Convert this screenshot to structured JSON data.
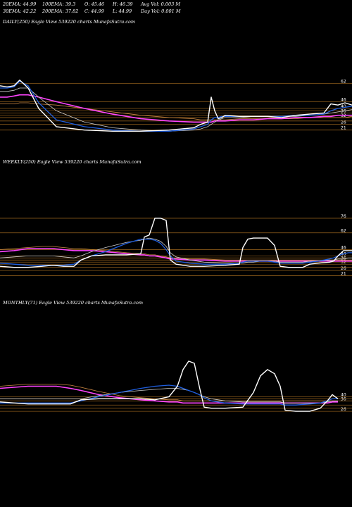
{
  "header": {
    "ema20": "20EMA: 44.99",
    "ema100": "100EMA: 39.3",
    "open": "O: 45.46",
    "high": "H: 46.39",
    "avg_vol": "Avg Vol: 0.003 M",
    "ema30": "30EMA: 42.22",
    "ema200": "200EMA: 37.82",
    "close": "C: 44.99",
    "low": "L: 44.99",
    "day_vol": "Day Vol: 0.001 M"
  },
  "colors": {
    "price": "#ffffff",
    "ema_short": "#1f5fe0",
    "ema_mid": "#cccccc",
    "ema_long": "#ff44ff",
    "ema_200": "#cc8844",
    "hline": "#8a5a1a"
  },
  "chart_data": [
    {
      "type": "line",
      "title": "DAILY(250) Eagle  View  539220  charts MunafaSutra.com",
      "ylim": [
        14,
        71
      ],
      "hlines": [
        {
          "value": 62,
          "label": "62"
        },
        {
          "value": 46,
          "label": "46"
        },
        {
          "value": 40,
          "label": "40"
        },
        {
          "value": 36,
          "label": "36"
        },
        {
          "value": 32,
          "label": "32"
        },
        {
          "value": 26,
          "label": "26"
        },
        {
          "value": 21,
          "label": "21"
        },
        {
          "value": 38,
          "label": ""
        },
        {
          "value": 34,
          "label": ""
        },
        {
          "value": 29,
          "label": ""
        }
      ],
      "x": [
        0,
        10,
        20,
        28,
        40,
        55,
        80,
        120,
        160,
        200,
        240,
        275,
        285,
        295,
        300,
        305,
        310,
        315,
        320,
        340,
        360,
        380,
        400,
        420,
        440,
        460,
        470,
        480,
        490,
        500
      ],
      "series": [
        {
          "role": "price",
          "values": [
            60,
            59,
            60,
            65,
            58,
            40,
            24,
            21,
            20,
            20,
            21,
            23,
            26,
            28,
            50,
            38,
            31,
            32,
            34,
            33,
            33,
            33,
            32,
            34,
            35,
            36,
            44,
            43,
            45,
            43
          ]
        },
        {
          "role": "ema_short",
          "values": [
            58,
            58,
            59,
            64,
            60,
            45,
            30,
            24,
            21,
            20,
            20,
            22,
            24,
            26,
            30,
            32,
            32,
            33,
            33,
            33,
            33,
            33,
            33,
            34,
            34,
            35,
            38,
            40,
            41,
            42
          ]
        },
        {
          "role": "ema_mid",
          "values": [
            55,
            55,
            56,
            58,
            58,
            50,
            38,
            28,
            23,
            21,
            20,
            21,
            22,
            24,
            26,
            28,
            30,
            31,
            32,
            32,
            33,
            33,
            33,
            33,
            34,
            35,
            36,
            37,
            38,
            39
          ]
        },
        {
          "role": "ema_long",
          "values": [
            50,
            50,
            51,
            52,
            52,
            50,
            46,
            40,
            35,
            31,
            29,
            28,
            28,
            28,
            28,
            29,
            29,
            29,
            29,
            30,
            30,
            31,
            31,
            32,
            32,
            33,
            33,
            34,
            34,
            34
          ]
        },
        {
          "role": "ema_200",
          "values": [
            44,
            44,
            44,
            45,
            45,
            44,
            43,
            40,
            37,
            34,
            32,
            31,
            30,
            30,
            30,
            30,
            30,
            30,
            30,
            31,
            31,
            31,
            31,
            31,
            32,
            32,
            32,
            32,
            32,
            33
          ]
        }
      ]
    },
    {
      "type": "line",
      "title": "WEEKLY(250) Eagle  View  539220  charts MunafaSutra.com",
      "ylim": [
        18,
        80
      ],
      "hlines": [
        {
          "value": 76,
          "label": "76"
        },
        {
          "value": 62,
          "label": "62"
        },
        {
          "value": 46,
          "label": "46"
        },
        {
          "value": 40,
          "label": "40"
        },
        {
          "value": 36,
          "label": "36"
        },
        {
          "value": 32,
          "label": "32"
        },
        {
          "value": 26,
          "label": "26"
        },
        {
          "value": 21,
          "label": "21"
        },
        {
          "value": 38,
          "label": ""
        },
        {
          "value": 34,
          "label": ""
        },
        {
          "value": 29,
          "label": ""
        }
      ],
      "x": [
        0,
        20,
        40,
        60,
        75,
        90,
        105,
        115,
        130,
        150,
        180,
        200,
        205,
        212,
        220,
        228,
        236,
        242,
        250,
        270,
        290,
        320,
        340,
        345,
        352,
        360,
        370,
        380,
        390,
        398,
        410,
        430,
        440,
        452,
        468,
        474,
        480,
        488,
        495,
        500
      ],
      "series": [
        {
          "role": "price",
          "values": [
            30,
            29,
            29,
            30,
            31,
            30,
            30,
            36,
            40,
            41,
            41,
            42,
            58,
            60,
            76,
            76,
            74,
            36,
            32,
            30,
            30,
            31,
            32,
            48,
            56,
            57,
            57,
            57,
            50,
            30,
            29,
            29,
            32,
            33,
            34,
            35,
            40,
            45,
            45,
            45
          ]
        },
        {
          "role": "ema_short",
          "values": [
            33,
            32,
            31,
            31,
            31,
            31,
            32,
            36,
            40,
            44,
            52,
            56,
            56,
            56,
            55,
            52,
            46,
            40,
            35,
            33,
            32,
            32,
            33,
            34,
            35,
            35,
            35,
            35,
            34,
            33,
            33,
            33,
            34,
            35,
            37,
            38,
            40,
            42,
            43,
            43
          ]
        },
        {
          "role": "ema_mid",
          "values": [
            38,
            39,
            40,
            40,
            40,
            39,
            38,
            40,
            44,
            48,
            53,
            55,
            56,
            57,
            56,
            54,
            49,
            43,
            39,
            36,
            34,
            33,
            33,
            33,
            34,
            34,
            35,
            35,
            35,
            34,
            34,
            34,
            35,
            35,
            36,
            36,
            37,
            37,
            38,
            38
          ]
        },
        {
          "role": "ema_long",
          "values": [
            44,
            45,
            47,
            47,
            47,
            46,
            45,
            45,
            45,
            44,
            42,
            41,
            41,
            40,
            40,
            39,
            38,
            37,
            37,
            36,
            36,
            35,
            35,
            35,
            35,
            35,
            35,
            35,
            35,
            35,
            35,
            35,
            35,
            35,
            35,
            35,
            35,
            35,
            35,
            35
          ]
        },
        {
          "role": "ema_200",
          "values": [
            46,
            47,
            48,
            49,
            49,
            48,
            47,
            47,
            46,
            45,
            43,
            42,
            42,
            41,
            41,
            40,
            39,
            38,
            38,
            37,
            37,
            36,
            36,
            36,
            36,
            36,
            36,
            36,
            36,
            36,
            36,
            36,
            36,
            36,
            36,
            36,
            36,
            36,
            36,
            36
          ]
        }
      ]
    },
    {
      "type": "line",
      "title": "MONTHLY(71) Eagle  View  539220  charts MunafaSutra.com",
      "ylim": [
        18,
        80
      ],
      "hlines": [
        {
          "value": 40,
          "label": "40"
        },
        {
          "value": 36,
          "label": "36"
        },
        {
          "value": 26,
          "label": "26"
        },
        {
          "value": 38,
          "label": ""
        },
        {
          "value": 32,
          "label": ""
        },
        {
          "value": 29,
          "label": ""
        }
      ],
      "x": [
        0,
        40,
        80,
        100,
        115,
        140,
        170,
        200,
        220,
        240,
        252,
        260,
        268,
        276,
        283,
        290,
        300,
        320,
        345,
        360,
        370,
        380,
        390,
        398,
        405,
        420,
        440,
        455,
        465,
        472,
        480
      ],
      "series": [
        {
          "role": "price",
          "values": [
            35,
            33,
            33,
            33,
            37,
            38,
            38,
            38,
            37,
            40,
            50,
            66,
            74,
            72,
            50,
            30,
            29,
            29,
            30,
            44,
            60,
            66,
            62,
            50,
            27,
            26,
            26,
            29,
            36,
            42,
            38
          ]
        },
        {
          "role": "ema_short",
          "values": [
            34,
            34,
            34,
            34,
            36,
            40,
            44,
            48,
            50,
            51,
            50,
            48,
            46,
            44,
            42,
            39,
            36,
            34,
            33,
            33,
            33,
            33,
            33,
            33,
            32,
            32,
            33,
            34,
            36,
            38,
            38
          ]
        },
        {
          "role": "ema_mid",
          "values": [
            38,
            38,
            38,
            38,
            38,
            41,
            44,
            46,
            47,
            48,
            48,
            47,
            46,
            44,
            42,
            40,
            38,
            36,
            35,
            35,
            35,
            35,
            35,
            35,
            34,
            34,
            34,
            34,
            35,
            36,
            36
          ]
        },
        {
          "role": "ema_long",
          "values": [
            48,
            50,
            50,
            48,
            46,
            42,
            39,
            37,
            36,
            35,
            35,
            34,
            34,
            34,
            34,
            34,
            34,
            34,
            34,
            34,
            34,
            34,
            34,
            34,
            34,
            34,
            34,
            34,
            34,
            35,
            35
          ]
        },
        {
          "role": "ema_200",
          "values": [
            50,
            52,
            52,
            51,
            49,
            45,
            41,
            39,
            38,
            37,
            37,
            36,
            36,
            36,
            36,
            36,
            36,
            36,
            36,
            36,
            36,
            36,
            36,
            36,
            36,
            36,
            36,
            36,
            36,
            36,
            36
          ]
        }
      ]
    }
  ]
}
